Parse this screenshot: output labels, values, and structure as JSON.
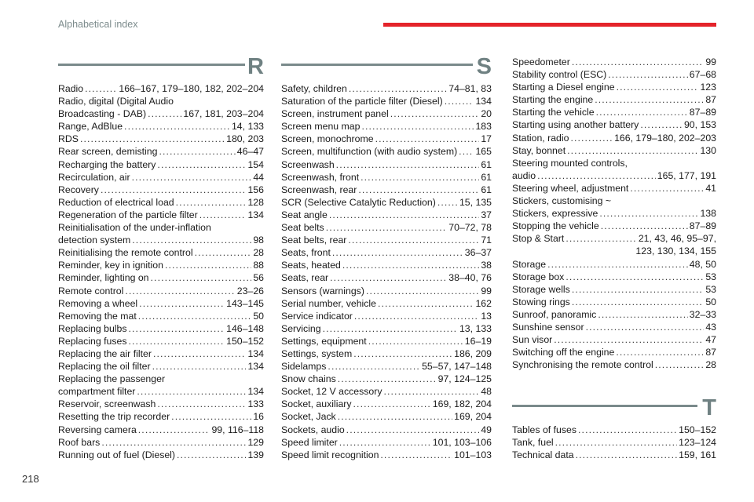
{
  "header": {
    "title": "Alphabetical index",
    "accent_color": "#e4232a"
  },
  "page_number": "218",
  "sections": [
    {
      "letter": "R",
      "entries": [
        {
          "label": "Radio",
          "pages": "166–167, 179–180, 182, 202–204"
        },
        {
          "pre": "Radio, digital (Digital Audio",
          "label": "Broadcasting - DAB)",
          "pages": "167, 181, 203–204"
        },
        {
          "label": "Range, AdBlue",
          "pages": "14, 133"
        },
        {
          "label": "RDS",
          "pages": "180, 203"
        },
        {
          "label": "Rear screen, demisting",
          "pages": "46–47"
        },
        {
          "label": "Recharging the battery",
          "pages": "154"
        },
        {
          "label": "Recirculation, air",
          "pages": "44"
        },
        {
          "label": "Recovery",
          "pages": "156"
        },
        {
          "label": "Reduction of electrical load",
          "pages": "128"
        },
        {
          "label": "Regeneration of the particle filter",
          "pages": "134"
        },
        {
          "pre": "Reinitialisation of the under-inflation",
          "label": "detection system",
          "pages": "98"
        },
        {
          "label": "Reinitialising the remote control",
          "pages": "28"
        },
        {
          "label": "Reminder, key in ignition",
          "pages": "88"
        },
        {
          "label": "Reminder, lighting on",
          "pages": "56"
        },
        {
          "label": "Remote control",
          "pages": "23–26"
        },
        {
          "label": "Removing a wheel",
          "pages": "143–145"
        },
        {
          "label": "Removing the mat",
          "pages": "50"
        },
        {
          "label": "Replacing bulbs",
          "pages": "146–148"
        },
        {
          "label": "Replacing fuses",
          "pages": "150–152"
        },
        {
          "label": "Replacing the air filter",
          "pages": "134"
        },
        {
          "label": "Replacing the oil filter",
          "pages": "134"
        },
        {
          "pre": "Replacing the passenger",
          "label": "compartment filter",
          "pages": "134"
        },
        {
          "label": "Reservoir, screenwash",
          "pages": "133"
        },
        {
          "label": "Resetting the trip recorder",
          "pages": "16"
        },
        {
          "label": "Reversing camera",
          "pages": "99, 116–118"
        },
        {
          "label": "Roof bars",
          "pages": "129"
        },
        {
          "label": "Running out of fuel (Diesel)",
          "pages": "139"
        }
      ]
    },
    {
      "letter": "S",
      "entries": [
        {
          "label": "Safety, children",
          "pages": "74–81, 83"
        },
        {
          "label": "Saturation of the particle filter (Diesel)",
          "pages": "134"
        },
        {
          "label": "Screen, instrument panel",
          "pages": "20"
        },
        {
          "label": "Screen menu map",
          "pages": "183"
        },
        {
          "label": "Screen, monochrome",
          "pages": "17"
        },
        {
          "label": "Screen, multifunction (with audio system)",
          "pages": "165"
        },
        {
          "label": "Screenwash",
          "pages": "61"
        },
        {
          "label": "Screenwash, front",
          "pages": "61"
        },
        {
          "label": "Screenwash, rear",
          "pages": "61"
        },
        {
          "label": "SCR (Selective Catalytic Reduction)",
          "pages": "15, 135"
        },
        {
          "label": "Seat angle",
          "pages": "37"
        },
        {
          "label": "Seat belts",
          "pages": "70–72, 78"
        },
        {
          "label": "Seat belts, rear",
          "pages": "71"
        },
        {
          "label": "Seats, front",
          "pages": "36–37"
        },
        {
          "label": "Seats, heated",
          "pages": "38"
        },
        {
          "label": "Seats, rear",
          "pages": "38–40, 76"
        },
        {
          "label": "Sensors (warnings)",
          "pages": "99"
        },
        {
          "label": "Serial number, vehicle",
          "pages": "162"
        },
        {
          "label": "Service indicator",
          "pages": "13"
        },
        {
          "label": "Servicing",
          "pages": "13, 133"
        },
        {
          "label": "Settings, equipment",
          "pages": "16–19"
        },
        {
          "label": "Settings, system",
          "pages": "186, 209"
        },
        {
          "label": "Sidelamps",
          "pages": "55–57, 147–148"
        },
        {
          "label": "Snow chains",
          "pages": "97, 124–125"
        },
        {
          "label": "Socket, 12 V accessory",
          "pages": "48"
        },
        {
          "label": "Socket, auxiliary",
          "pages": "169, 182, 204"
        },
        {
          "label": "Socket, Jack",
          "pages": "169, 204"
        },
        {
          "label": "Sockets, audio",
          "pages": "49"
        },
        {
          "label": "Speed limiter",
          "pages": "101, 103–106"
        },
        {
          "label": "Speed limit recognition",
          "pages": "101–103"
        }
      ]
    },
    {
      "letter": "",
      "entries": [
        {
          "label": "Speedometer",
          "pages": "99"
        },
        {
          "label": "Stability control (ESC)",
          "pages": "67–68"
        },
        {
          "label": "Starting a Diesel engine",
          "pages": "123"
        },
        {
          "label": "Starting the engine",
          "pages": "87"
        },
        {
          "label": "Starting the vehicle",
          "pages": "87–89"
        },
        {
          "label": "Starting using another battery",
          "pages": "90, 153"
        },
        {
          "label": "Station, radio",
          "pages": "166, 179–180, 202–203"
        },
        {
          "label": "Stay, bonnet",
          "pages": "130"
        },
        {
          "pre": "Steering mounted controls,",
          "label": "audio",
          "pages": "165, 177, 191"
        },
        {
          "label": "Steering wheel, adjustment",
          "pages": "41"
        },
        {
          "pre": "Stickers, customising ~",
          "label": "Stickers, expressive",
          "pages": "138"
        },
        {
          "label": "Stopping the vehicle",
          "pages": "87–89"
        },
        {
          "label": "Stop & Start",
          "pages": "21, 43, 46, 95–97,",
          "pages_cont": "123, 130, 134, 155"
        },
        {
          "label": "Storage",
          "pages": "48, 50"
        },
        {
          "label": "Storage box",
          "pages": "53"
        },
        {
          "label": "Storage wells",
          "pages": "53"
        },
        {
          "label": "Stowing rings",
          "pages": "50"
        },
        {
          "label": "Sunroof, panoramic",
          "pages": "32–33"
        },
        {
          "label": "Sunshine sensor",
          "pages": "43"
        },
        {
          "label": "Sun visor",
          "pages": "47"
        },
        {
          "label": "Switching off the engine",
          "pages": "87"
        },
        {
          "label": "Synchronising the remote control",
          "pages": "28"
        }
      ]
    },
    {
      "letter": "T",
      "entries": [
        {
          "label": "Tables of fuses",
          "pages": "150–152"
        },
        {
          "label": "Tank, fuel",
          "pages": "123–124"
        },
        {
          "label": "Technical data",
          "pages": "159, 161"
        }
      ]
    }
  ]
}
